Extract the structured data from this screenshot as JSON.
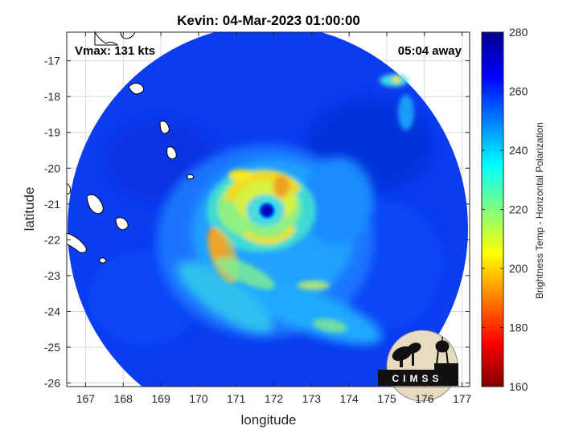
{
  "chart_data": {
    "type": "heatmap",
    "title": "Kevin: 04-Mar-2023 01:00:00",
    "xlabel": "longitude",
    "ylabel": "latitude",
    "xlim": [
      166.5,
      177.2
    ],
    "ylim": [
      -26.1,
      -16.2
    ],
    "xticks": [
      167,
      168,
      169,
      170,
      171,
      172,
      173,
      174,
      175,
      176,
      177
    ],
    "yticks": [
      -17,
      -18,
      -19,
      -20,
      -21,
      -22,
      -23,
      -24,
      -25,
      -26
    ],
    "grid": true,
    "annotations": {
      "vmax": "Vmax: 131 kts",
      "time_away": "05:04 away"
    },
    "storm_center": {
      "lon": 171.8,
      "lat": -21.0
    },
    "colorbar": {
      "label": "Brightness Temp - Horizontal Polarization",
      "min": 160,
      "max": 280,
      "ticks": [
        160,
        180,
        200,
        220,
        240,
        260,
        280
      ],
      "colormap": "jet"
    },
    "logo_text": "CIMSS"
  }
}
